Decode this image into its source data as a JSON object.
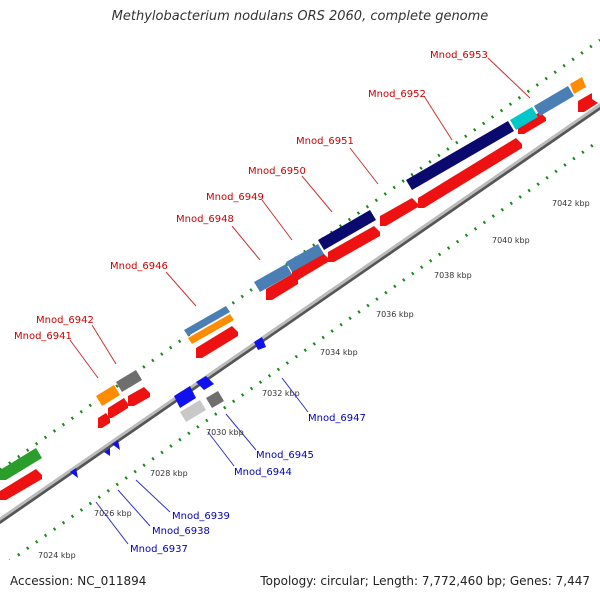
{
  "title": "Methylobacterium nodulans ORS 2060, complete genome",
  "footer": {
    "accession": "Accession: NC_011894",
    "summary": "Topology: circular; Length: 7,772,460 bp; Genes: 7,447"
  },
  "colors": {
    "forward_label": "#cc0000",
    "reverse_label": "#0000bb",
    "leader": "#3333cc",
    "backbone": "#8c8c8c",
    "tick_dots": "#1a8a1a",
    "scale_text": "#333333"
  },
  "scale_ticks": [
    "7024 kbp",
    "7026 kbp",
    "7028 kbp",
    "7030 kbp",
    "7032 kbp",
    "7034 kbp",
    "7036 kbp",
    "7038 kbp",
    "7040 kbp",
    "7042 kbp"
  ],
  "forward_labels": [
    "Mnod_6941",
    "Mnod_6942",
    "Mnod_6946",
    "Mnod_6948",
    "Mnod_6949",
    "Mnod_6950",
    "Mnod_6951",
    "Mnod_6952",
    "Mnod_6953"
  ],
  "reverse_labels": [
    "Mnod_6937",
    "Mnod_6938",
    "Mnod_6939",
    "Mnod_6944",
    "Mnod_6945",
    "Mnod_6947"
  ],
  "legend_categories": [
    "red",
    "navy",
    "steelblue",
    "orange",
    "cyan",
    "grey",
    "green",
    "blue"
  ]
}
